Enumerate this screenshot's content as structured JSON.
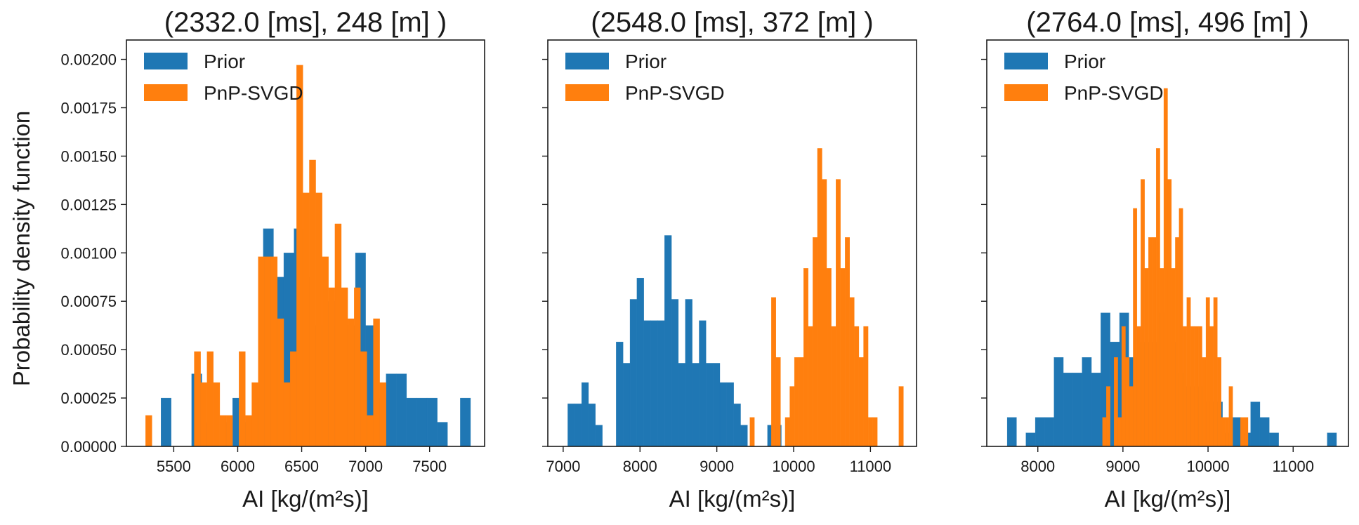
{
  "figure": {
    "ylabel": "Probability density function"
  },
  "chart_data": [
    {
      "type": "histogram",
      "title": "(2332.0 [ms], 248 [m] )",
      "xlabel": "AI [kg/(m²s)]",
      "ylabel": "Probability density function",
      "xlim": [
        5130,
        7930
      ],
      "ylim": [
        0,
        0.0021
      ],
      "xticks": [
        5500,
        6000,
        6500,
        7000,
        7500
      ],
      "yticks": [
        0,
        0.00025,
        0.0005,
        0.00075,
        0.001,
        0.00125,
        0.0015,
        0.00175,
        0.002
      ],
      "ytick_labels": [
        "0.00000",
        "0.00025",
        "0.00050",
        "0.00075",
        "0.00100",
        "0.00125",
        "0.00150",
        "0.00175",
        "0.00200"
      ],
      "legend": {
        "position": "top-left",
        "entries": [
          "Prior",
          "PnP-SVGD"
        ]
      },
      "series": [
        {
          "name": "Prior",
          "color": "#1f77b4",
          "bins": [
            [
              5400,
              5480,
              0.00025
            ],
            [
              5640,
              5720,
              0.000375
            ],
            [
              5720,
              5800,
              0.000125
            ],
            [
              5880,
              5960,
              0.000125
            ],
            [
              5960,
              6040,
              0.00025
            ],
            [
              6040,
              6120,
              0.000125
            ],
            [
              6120,
              6200,
              0.00025
            ],
            [
              6200,
              6280,
              0.001125
            ],
            [
              6280,
              6360,
              0.000875
            ],
            [
              6360,
              6440,
              0.001
            ],
            [
              6440,
              6520,
              0.001125
            ],
            [
              6520,
              6600,
              0.000875
            ],
            [
              6600,
              6680,
              0.000625
            ],
            [
              6680,
              6760,
              0.00075
            ],
            [
              6760,
              6840,
              0.000625
            ],
            [
              6840,
              6920,
              0.000625
            ],
            [
              6920,
              7000,
              0.001
            ],
            [
              7000,
              7080,
              0.000625
            ],
            [
              7080,
              7160,
              0.00025
            ],
            [
              7160,
              7240,
              0.000375
            ],
            [
              7240,
              7320,
              0.000375
            ],
            [
              7320,
              7400,
              0.00025
            ],
            [
              7400,
              7480,
              0.00025
            ],
            [
              7480,
              7560,
              0.00025
            ],
            [
              7560,
              7640,
              0.000125
            ],
            [
              7740,
              7820,
              0.00025
            ]
          ]
        },
        {
          "name": "PnP-SVGD",
          "color": "#ff7f0e",
          "bins": [
            [
              5280,
              5330,
              0.00016
            ],
            [
              5660,
              5710,
              0.00049
            ],
            [
              5710,
              5760,
              0.00033
            ],
            [
              5760,
              5810,
              0.00049
            ],
            [
              5810,
              5860,
              0.00033
            ],
            [
              5860,
              5910,
              0.00016
            ],
            [
              5910,
              5960,
              0.00016
            ],
            [
              6010,
              6060,
              0.00049
            ],
            [
              6060,
              6110,
              0.00016
            ],
            [
              6110,
              6160,
              0.00033
            ],
            [
              6160,
              6210,
              0.00098
            ],
            [
              6210,
              6260,
              0.00098
            ],
            [
              6260,
              6310,
              0.00098
            ],
            [
              6310,
              6360,
              0.00066
            ],
            [
              6360,
              6410,
              0.00033
            ],
            [
              6410,
              6460,
              0.00049
            ],
            [
              6460,
              6510,
              0.00197
            ],
            [
              6510,
              6560,
              0.00131
            ],
            [
              6560,
              6610,
              0.00148
            ],
            [
              6610,
              6660,
              0.00131
            ],
            [
              6660,
              6710,
              0.00098
            ],
            [
              6710,
              6760,
              0.00082
            ],
            [
              6760,
              6810,
              0.00115
            ],
            [
              6810,
              6860,
              0.00082
            ],
            [
              6860,
              6910,
              0.00066
            ],
            [
              6910,
              6960,
              0.00082
            ],
            [
              6960,
              7010,
              0.00049
            ],
            [
              7010,
              7060,
              0.00016
            ],
            [
              7060,
              7110,
              0.00066
            ],
            [
              7110,
              7160,
              0.00033
            ]
          ]
        }
      ]
    },
    {
      "type": "histogram",
      "title": "(2548.0 [ms], 372 [m] )",
      "xlabel": "AI [kg/(m²s)]",
      "xlim": [
        6800,
        11600
      ],
      "ylim": [
        0,
        0.0021
      ],
      "xticks": [
        7000,
        8000,
        9000,
        10000,
        11000
      ],
      "legend": {
        "position": "top-left",
        "entries": [
          "Prior",
          "PnP-SVGD"
        ]
      },
      "series": [
        {
          "name": "Prior",
          "color": "#1f77b4",
          "bins": [
            [
              7060,
              7150,
              0.00022
            ],
            [
              7150,
              7240,
              0.00022
            ],
            [
              7240,
              7330,
              0.00033
            ],
            [
              7330,
              7420,
              0.00022
            ],
            [
              7420,
              7510,
              0.00011
            ],
            [
              7690,
              7780,
              0.00054
            ],
            [
              7780,
              7870,
              0.00043
            ],
            [
              7870,
              7960,
              0.00076
            ],
            [
              7960,
              8050,
              0.00087
            ],
            [
              8050,
              8140,
              0.00065
            ],
            [
              8140,
              8230,
              0.00065
            ],
            [
              8230,
              8320,
              0.00065
            ],
            [
              8320,
              8410,
              0.00109
            ],
            [
              8410,
              8500,
              0.00076
            ],
            [
              8500,
              8590,
              0.00043
            ],
            [
              8590,
              8680,
              0.00076
            ],
            [
              8680,
              8770,
              0.00043
            ],
            [
              8770,
              8860,
              0.00065
            ],
            [
              8860,
              8950,
              0.00043
            ],
            [
              8950,
              9040,
              0.00043
            ],
            [
              9040,
              9130,
              0.00033
            ],
            [
              9130,
              9220,
              0.00033
            ],
            [
              9220,
              9310,
              0.00022
            ],
            [
              9310,
              9400,
              0.00011
            ],
            [
              9660,
              9750,
              0.00011
            ],
            [
              9750,
              9840,
              0.00011
            ]
          ]
        },
        {
          "name": "PnP-SVGD",
          "color": "#ff7f0e",
          "bins": [
            [
              9430,
              9490,
              0.00015
            ],
            [
              9710,
              9770,
              0.00077
            ],
            [
              9770,
              9830,
              0.00046
            ],
            [
              9890,
              9950,
              0.00015
            ],
            [
              9950,
              10010,
              0.00031
            ],
            [
              10010,
              10070,
              0.00046
            ],
            [
              10070,
              10130,
              0.00046
            ],
            [
              10130,
              10190,
              0.00092
            ],
            [
              10190,
              10250,
              0.00062
            ],
            [
              10250,
              10310,
              0.00108
            ],
            [
              10310,
              10370,
              0.00154
            ],
            [
              10370,
              10430,
              0.00138
            ],
            [
              10430,
              10490,
              0.00092
            ],
            [
              10490,
              10550,
              0.00062
            ],
            [
              10550,
              10610,
              0.00138
            ],
            [
              10610,
              10670,
              0.00092
            ],
            [
              10670,
              10730,
              0.00108
            ],
            [
              10730,
              10790,
              0.00077
            ],
            [
              10790,
              10850,
              0.00062
            ],
            [
              10850,
              10910,
              0.00046
            ],
            [
              10910,
              10970,
              0.00062
            ],
            [
              10970,
              11030,
              0.00015
            ],
            [
              11030,
              11090,
              0.00015
            ],
            [
              11370,
              11430,
              0.00031
            ]
          ]
        }
      ]
    },
    {
      "type": "histogram",
      "title": "(2764.0 [ms], 496 [m] )",
      "xlabel": "AI [kg/(m²s)]",
      "xlim": [
        7400,
        11650
      ],
      "ylim": [
        0,
        0.0021
      ],
      "xticks": [
        8000,
        9000,
        10000,
        11000
      ],
      "legend": {
        "position": "top-left",
        "entries": [
          "Prior",
          "PnP-SVGD"
        ]
      },
      "series": [
        {
          "name": "Prior",
          "color": "#1f77b4",
          "bins": [
            [
              7640,
              7750,
              0.00015
            ],
            [
              7860,
              7970,
              7e-05
            ],
            [
              7970,
              8080,
              0.00015
            ],
            [
              8080,
              8190,
              0.00015
            ],
            [
              8190,
              8300,
              0.00046
            ],
            [
              8300,
              8410,
              0.00038
            ],
            [
              8410,
              8520,
              0.00038
            ],
            [
              8520,
              8630,
              0.00046
            ],
            [
              8630,
              8740,
              0.00038
            ],
            [
              8740,
              8850,
              0.00069
            ],
            [
              8850,
              8960,
              0.00054
            ],
            [
              8960,
              9070,
              0.00069
            ],
            [
              9070,
              9180,
              0.00046
            ],
            [
              9180,
              9290,
              0.00054
            ],
            [
              9290,
              9400,
              0.00054
            ],
            [
              9400,
              9510,
              0.00069
            ],
            [
              9510,
              9620,
              0.00054
            ],
            [
              9620,
              9730,
              0.00038
            ],
            [
              9730,
              9840,
              0.00031
            ],
            [
              9840,
              9950,
              0.00031
            ],
            [
              9950,
              10060,
              0.00023
            ],
            [
              10060,
              10170,
              0.00023
            ],
            [
              10170,
              10280,
              7e-05
            ],
            [
              10280,
              10390,
              0.00015
            ],
            [
              10390,
              10500,
              7e-05
            ],
            [
              10500,
              10610,
              0.00023
            ],
            [
              10610,
              10720,
              0.00015
            ],
            [
              10720,
              10830,
              7e-05
            ],
            [
              11400,
              11510,
              7e-05
            ]
          ]
        },
        {
          "name": "PnP-SVGD",
          "color": "#ff7f0e",
          "bins": [
            [
              8760,
              8805,
              0.00015
            ],
            [
              8805,
              8850,
              0.00031
            ],
            [
              8895,
              8940,
              0.00046
            ],
            [
              8940,
              8985,
              0.00015
            ],
            [
              8985,
              9030,
              0.00062
            ],
            [
              9030,
              9075,
              0.00046
            ],
            [
              9075,
              9120,
              0.00031
            ],
            [
              9120,
              9165,
              0.00123
            ],
            [
              9165,
              9210,
              0.00062
            ],
            [
              9210,
              9255,
              0.00138
            ],
            [
              9255,
              9300,
              0.00092
            ],
            [
              9300,
              9345,
              0.00108
            ],
            [
              9345,
              9390,
              0.00108
            ],
            [
              9390,
              9435,
              0.00154
            ],
            [
              9435,
              9480,
              0.00092
            ],
            [
              9480,
              9525,
              0.00185
            ],
            [
              9525,
              9570,
              0.00138
            ],
            [
              9570,
              9615,
              0.00092
            ],
            [
              9615,
              9660,
              0.00108
            ],
            [
              9660,
              9705,
              0.00123
            ],
            [
              9705,
              9750,
              0.00062
            ],
            [
              9750,
              9795,
              0.00077
            ],
            [
              9795,
              9840,
              0.00062
            ],
            [
              9840,
              9885,
              0.00062
            ],
            [
              9885,
              9930,
              0.00062
            ],
            [
              9930,
              9975,
              0.00046
            ],
            [
              9975,
              10020,
              0.00077
            ],
            [
              10020,
              10065,
              0.00062
            ],
            [
              10065,
              10110,
              0.00077
            ],
            [
              10110,
              10155,
              0.00046
            ],
            [
              10155,
              10200,
              0.00015
            ],
            [
              10200,
              10245,
              0.00015
            ],
            [
              10245,
              10290,
              0.00031
            ],
            [
              10380,
              10425,
              0.00015
            ],
            [
              10425,
              10470,
              0.00015
            ]
          ]
        }
      ]
    }
  ]
}
